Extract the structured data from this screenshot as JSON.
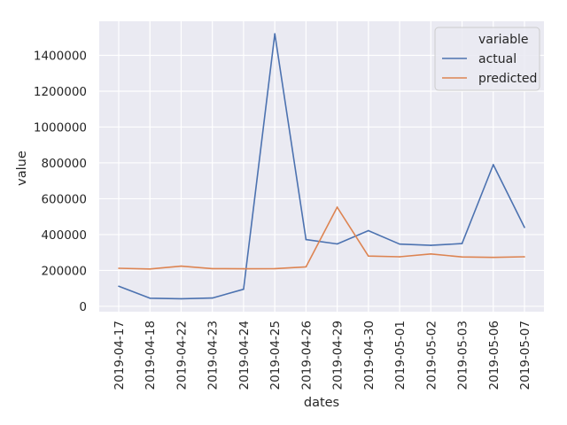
{
  "chart_data": {
    "type": "line",
    "title": "",
    "xlabel": "dates",
    "ylabel": "value",
    "categories": [
      "2019-04-17",
      "2019-04-18",
      "2019-04-22",
      "2019-04-23",
      "2019-04-24",
      "2019-04-25",
      "2019-04-26",
      "2019-04-29",
      "2019-04-30",
      "2019-05-01",
      "2019-05-02",
      "2019-05-03",
      "2019-05-06",
      "2019-05-07"
    ],
    "series": [
      {
        "name": "actual",
        "color": "#4c72b0",
        "values": [
          112000,
          45000,
          42000,
          46000,
          95000,
          1520000,
          372000,
          348000,
          422000,
          347000,
          340000,
          350000,
          790000,
          440000
        ]
      },
      {
        "name": "predicted",
        "color": "#dd8452",
        "values": [
          212000,
          208000,
          224000,
          210000,
          209000,
          210000,
          220000,
          553000,
          280000,
          276000,
          292000,
          275000,
          273000,
          276000
        ]
      }
    ],
    "yticks": [
      0,
      200000,
      400000,
      600000,
      800000,
      1000000,
      1200000,
      1400000
    ],
    "ylim": [
      -30000,
      1590000
    ],
    "grid": true,
    "legend": {
      "title": "variable",
      "placement": "top-right"
    },
    "background_color": "#eaeaf2",
    "grid_color": "#ffffff"
  }
}
